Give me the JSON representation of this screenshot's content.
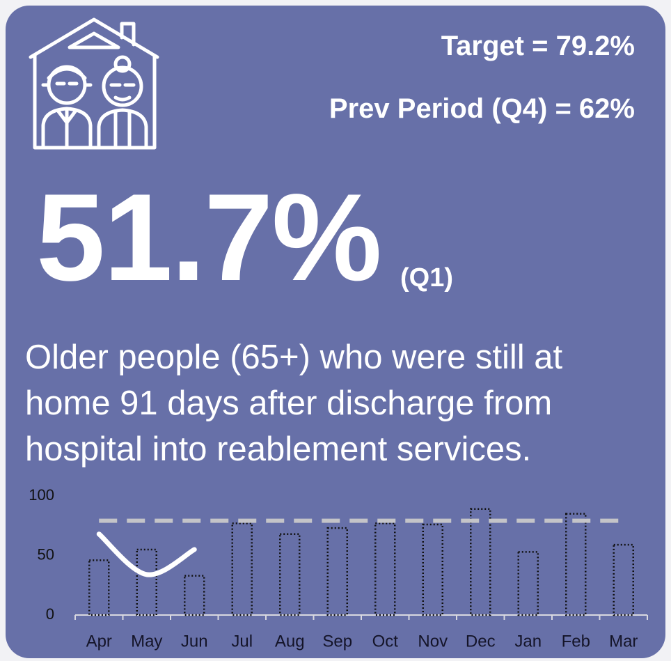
{
  "header": {
    "target": "Target = 79.2%",
    "previous": "Prev Period (Q4) = 62%"
  },
  "headline": {
    "value": "51.7%",
    "period": "(Q1)"
  },
  "description": "Older people (65+) who were still at home 91 days after discharge from hospital into reablement services.",
  "chart_data": {
    "type": "bar",
    "categories": [
      "Apr",
      "May",
      "Jun",
      "Jul",
      "Aug",
      "Sep",
      "Oct",
      "Nov",
      "Dec",
      "Jan",
      "Feb",
      "Mar"
    ],
    "values": [
      46,
      55,
      33,
      77,
      68,
      73,
      77,
      76,
      89,
      53,
      85,
      59
    ],
    "color": "#111111",
    "line": {
      "values": [
        68,
        34,
        55,
        null,
        null,
        null,
        null,
        null,
        null,
        null,
        null,
        null
      ],
      "color": "#ffffff"
    },
    "target_line": {
      "value": 79.2,
      "color": "#c4c4c8"
    },
    "ylim": [
      0,
      100
    ],
    "yticks": [
      0,
      50,
      100
    ],
    "grid": false
  }
}
